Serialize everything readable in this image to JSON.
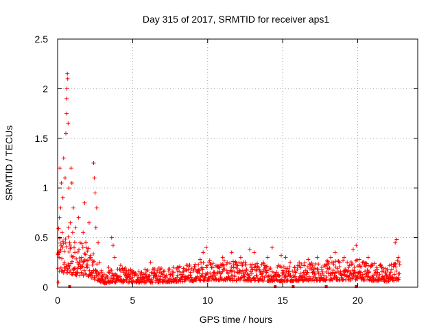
{
  "chart_data": {
    "type": "scatter",
    "title": "Day 315 of 2017, SRMTID for receiver aps1",
    "xlabel": "GPS time / hours",
    "ylabel": "SRMTID / TECUs",
    "xlim": [
      0,
      24
    ],
    "ylim": [
      0,
      2.5
    ],
    "xticks": [
      0,
      5,
      10,
      15,
      20
    ],
    "xtick_labels": [
      "0",
      "5",
      "10",
      "15",
      "20"
    ],
    "yticks": [
      0,
      0.5,
      1,
      1.5,
      2,
      2.5
    ],
    "ytick_labels": [
      "0",
      "0.5",
      "1",
      "1.5",
      "2",
      "2.5"
    ],
    "grid": true,
    "marker": "+",
    "color": "#ff0000",
    "series": [
      {
        "name": "SRMTID",
        "points": [
          [
            0.05,
            0.05
          ],
          [
            0.1,
            0.3
          ],
          [
            0.12,
            0.7
          ],
          [
            0.15,
            1.2
          ],
          [
            0.2,
            0.8
          ],
          [
            0.25,
            1.05
          ],
          [
            0.3,
            0.55
          ],
          [
            0.35,
            0.9
          ],
          [
            0.4,
            1.3
          ],
          [
            0.45,
            0.25
          ],
          [
            0.5,
            1.1
          ],
          [
            0.55,
            1.55
          ],
          [
            0.6,
            1.75
          ],
          [
            0.6,
            1.9
          ],
          [
            0.62,
            2.0
          ],
          [
            0.65,
            2.15
          ],
          [
            0.67,
            2.1
          ],
          [
            0.7,
            1.65
          ],
          [
            0.72,
            0.6
          ],
          [
            0.75,
            1.0
          ],
          [
            0.8,
            0.45
          ],
          [
            0.85,
            0.65
          ],
          [
            0.9,
            1.2
          ],
          [
            0.95,
            1.05
          ],
          [
            1.0,
            0.55
          ],
          [
            1.05,
            0.8
          ],
          [
            1.1,
            0.4
          ],
          [
            1.15,
            0.35
          ],
          [
            1.2,
            0.6
          ],
          [
            1.3,
            0.25
          ],
          [
            1.4,
            0.7
          ],
          [
            1.5,
            0.45
          ],
          [
            1.6,
            0.3
          ],
          [
            1.7,
            0.55
          ],
          [
            1.8,
            0.85
          ],
          [
            1.9,
            0.4
          ],
          [
            2.0,
            0.2
          ],
          [
            2.1,
            0.65
          ],
          [
            2.2,
            0.3
          ],
          [
            2.3,
            0.15
          ],
          [
            2.4,
            1.25
          ],
          [
            2.45,
            1.1
          ],
          [
            2.5,
            0.95
          ],
          [
            2.55,
            0.6
          ],
          [
            2.6,
            0.8
          ],
          [
            2.7,
            0.45
          ],
          [
            2.8,
            0.25
          ],
          [
            2.9,
            0.15
          ],
          [
            3.0,
            0.08
          ],
          [
            3.2,
            0.1
          ],
          [
            3.4,
            0.2
          ],
          [
            3.6,
            0.5
          ],
          [
            3.7,
            0.42
          ],
          [
            3.8,
            0.3
          ],
          [
            3.9,
            0.12
          ],
          [
            4.0,
            0.18
          ],
          [
            4.2,
            0.22
          ],
          [
            4.4,
            0.15
          ],
          [
            4.6,
            0.1
          ],
          [
            4.8,
            0.08
          ],
          [
            5.0,
            0.1
          ],
          [
            5.3,
            0.12
          ],
          [
            5.6,
            0.15
          ],
          [
            5.9,
            0.1
          ],
          [
            6.2,
            0.25
          ],
          [
            6.5,
            0.12
          ],
          [
            6.8,
            0.15
          ],
          [
            7.1,
            0.1
          ],
          [
            7.4,
            0.18
          ],
          [
            7.7,
            0.2
          ],
          [
            8.0,
            0.12
          ],
          [
            8.3,
            0.15
          ],
          [
            8.6,
            0.22
          ],
          [
            8.9,
            0.1
          ],
          [
            9.2,
            0.18
          ],
          [
            9.5,
            0.28
          ],
          [
            9.7,
            0.35
          ],
          [
            9.9,
            0.4
          ],
          [
            10.1,
            0.25
          ],
          [
            10.4,
            0.15
          ],
          [
            10.7,
            0.2
          ],
          [
            11.0,
            0.3
          ],
          [
            11.3,
            0.25
          ],
          [
            11.6,
            0.35
          ],
          [
            11.9,
            0.2
          ],
          [
            12.2,
            0.3
          ],
          [
            12.5,
            0.25
          ],
          [
            12.8,
            0.38
          ],
          [
            13.1,
            0.35
          ],
          [
            13.4,
            0.2
          ],
          [
            13.7,
            0.25
          ],
          [
            14.0,
            0.3
          ],
          [
            14.3,
            0.4
          ],
          [
            14.6,
            0.15
          ],
          [
            14.9,
            0.32
          ],
          [
            15.2,
            0.3
          ],
          [
            15.5,
            0.25
          ],
          [
            15.8,
            0.2
          ],
          [
            16.1,
            0.25
          ],
          [
            16.4,
            0.15
          ],
          [
            16.7,
            0.28
          ],
          [
            17.0,
            0.22
          ],
          [
            17.3,
            0.3
          ],
          [
            17.6,
            0.2
          ],
          [
            17.9,
            0.22
          ],
          [
            18.2,
            0.3
          ],
          [
            18.5,
            0.35
          ],
          [
            18.8,
            0.25
          ],
          [
            19.1,
            0.3
          ],
          [
            19.4,
            0.2
          ],
          [
            19.7,
            0.38
          ],
          [
            19.9,
            0.42
          ],
          [
            20.1,
            0.28
          ],
          [
            20.4,
            0.25
          ],
          [
            20.7,
            0.3
          ],
          [
            21.0,
            0.22
          ],
          [
            21.3,
            0.15
          ],
          [
            21.6,
            0.2
          ],
          [
            21.9,
            0.12
          ],
          [
            22.2,
            0.15
          ],
          [
            22.5,
            0.45
          ],
          [
            22.6,
            0.48
          ],
          [
            22.7,
            0.3
          ]
        ],
        "band": {
          "x_start": 0.0,
          "x_end": 22.8,
          "step": 0.02,
          "envelope_x": [
            0,
            1,
            2,
            3,
            4,
            6,
            9,
            10,
            12,
            15,
            19,
            20,
            22,
            22.8
          ],
          "envelope_y": [
            0.6,
            0.5,
            0.45,
            0.15,
            0.2,
            0.18,
            0.24,
            0.28,
            0.26,
            0.24,
            0.28,
            0.3,
            0.22,
            0.3
          ]
        },
        "zero_points": [
          [
            0.8,
            0.0
          ],
          [
            14.5,
            0.0
          ],
          [
            15.7,
            0.0
          ],
          [
            17.9,
            0.0
          ],
          [
            19.9,
            0.0
          ]
        ]
      }
    ]
  }
}
